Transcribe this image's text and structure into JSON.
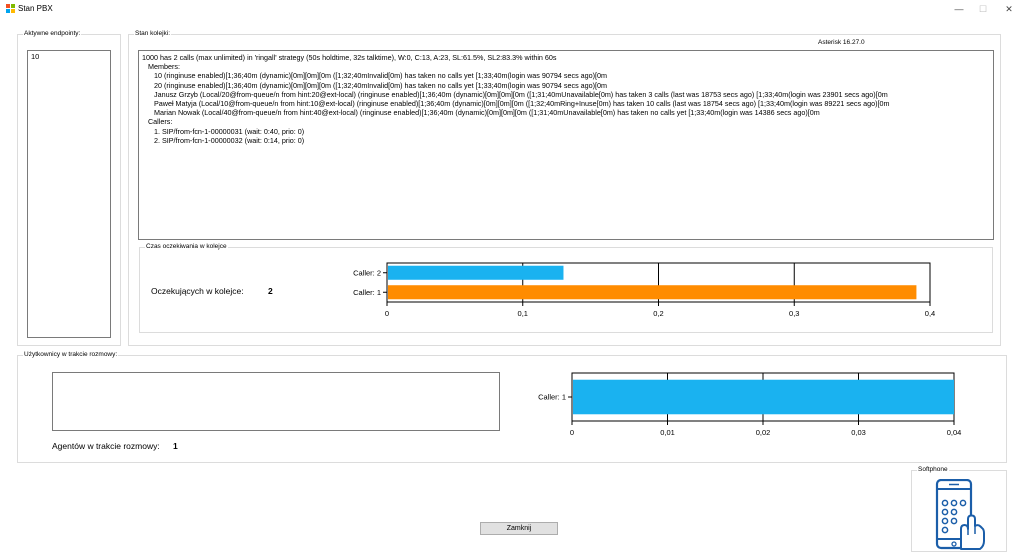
{
  "window": {
    "title": "Stan PBX",
    "controls": {
      "minimize": "—",
      "maximize": "☐",
      "close": "✕"
    }
  },
  "endpoints": {
    "title": "Aktywne endpointy:",
    "items": [
      "10"
    ]
  },
  "queue_state": {
    "title": "Stan kolejki:",
    "version": "Asterisk 16.27.0",
    "lines": [
      "1000 has 2 calls (max unlimited) in 'ringall' strategy (50s holdtime, 32s talktime), W:0, C:13, A:23, SL:61.5%, SL2:83.3% within 60s",
      "   Members:",
      "      10 (ringinuse enabled)[1;36;40m (dynamic)[0m][0m][0m ([1;32;40mInvalid[0m) has taken no calls yet [1;33;40m(login was 90794 secs ago)[0m",
      "      20 (ringinuse enabled)[1;36;40m (dynamic)[0m][0m][0m ([1;32;40mInvalid[0m) has taken no calls yet [1;33;40m(login was 90794 secs ago)[0m",
      "      Janusz Grzyb (Local/20@from-queue/n from hint:20@ext-local) (ringinuse enabled)[1;36;40m (dynamic)[0m][0m][0m ([1;31;40mUnavailable[0m) has taken 3 calls (last was 18753 secs ago) [1;33;40m(login was 23901 secs ago)[0m",
      "      Paweł Matyja (Local/10@from-queue/n from hint:10@ext-local) (ringinuse enabled)[1;36;40m (dynamic)[0m][0m][0m ([1;32;40mRing+Inuse[0m) has taken 10 calls (last was 18754 secs ago) [1;33;40m(login was 89221 secs ago)[0m",
      "      Marian Nowak (Local/40@from-queue/n from hint:40@ext-local) (ringinuse enabled)[1;36;40m (dynamic)[0m][0m][0m ([1;31;40mUnavailable[0m) has taken no calls yet [1;33;40m(login was 14386 secs ago)[0m",
      "   Callers:",
      "      1. SIP/from-fcn-1-00000031 (wait: 0:40, prio: 0)",
      "      2. SIP/from-fcn-1-00000032 (wait: 0:14, prio: 0)"
    ]
  },
  "wait_times": {
    "title": "Czas oczekiwania w kolejce",
    "count_label": "Oczekujących w kolejce:",
    "count_value": "2"
  },
  "agents": {
    "title": "Użytkownicy w trakcie rozmowy:",
    "count_label": "Agentów w trakcie rozmowy:",
    "count_value": "1"
  },
  "softphone": {
    "title": "Softphone",
    "icon": "phone-touch-icon"
  },
  "close_button": "Zamknij",
  "colors": {
    "blue_bar": "#1ab2f0",
    "orange_bar": "#ff8c00",
    "icon_blue": "#1b5ea9"
  },
  "chart_data": [
    {
      "type": "bar",
      "orientation": "horizontal",
      "categories": [
        "Caller: 2",
        "Caller: 1"
      ],
      "values": [
        0.13,
        0.39
      ],
      "colors": [
        "#1ab2f0",
        "#ff8c00"
      ],
      "xlim": [
        0,
        0.4
      ],
      "xticks": [
        "0",
        "0,1",
        "0,2",
        "0,3",
        "0,4"
      ],
      "grid": true
    },
    {
      "type": "bar",
      "orientation": "horizontal",
      "categories": [
        "Caller: 1"
      ],
      "values": [
        0.04
      ],
      "colors": [
        "#1ab2f0"
      ],
      "xlim": [
        0,
        0.04
      ],
      "xticks": [
        "0",
        "0,01",
        "0,02",
        "0,03",
        "0,04"
      ],
      "grid": true
    }
  ]
}
